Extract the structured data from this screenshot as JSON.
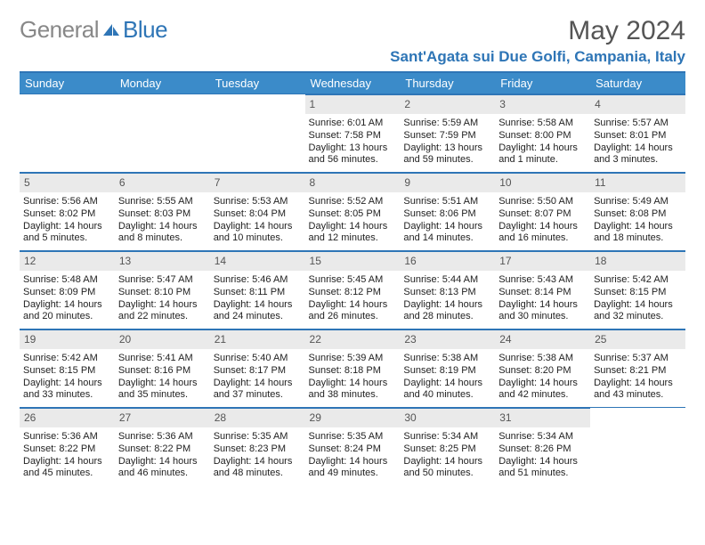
{
  "logo": {
    "gray": "General",
    "blue": "Blue"
  },
  "title": "May 2024",
  "location": "Sant'Agata sui Due Golfi, Campania, Italy",
  "colors": {
    "header_bg": "#3b8bc9",
    "border": "#2e75b6",
    "daynum_bg": "#eaeaea",
    "text": "#222222",
    "title_text": "#555555"
  },
  "weekdays": [
    "Sunday",
    "Monday",
    "Tuesday",
    "Wednesday",
    "Thursday",
    "Friday",
    "Saturday"
  ],
  "weeks": [
    [
      null,
      null,
      null,
      {
        "n": "1",
        "sr": "6:01 AM",
        "ss": "7:58 PM",
        "dl": "13 hours and 56 minutes."
      },
      {
        "n": "2",
        "sr": "5:59 AM",
        "ss": "7:59 PM",
        "dl": "13 hours and 59 minutes."
      },
      {
        "n": "3",
        "sr": "5:58 AM",
        "ss": "8:00 PM",
        "dl": "14 hours and 1 minute."
      },
      {
        "n": "4",
        "sr": "5:57 AM",
        "ss": "8:01 PM",
        "dl": "14 hours and 3 minutes."
      }
    ],
    [
      {
        "n": "5",
        "sr": "5:56 AM",
        "ss": "8:02 PM",
        "dl": "14 hours and 5 minutes."
      },
      {
        "n": "6",
        "sr": "5:55 AM",
        "ss": "8:03 PM",
        "dl": "14 hours and 8 minutes."
      },
      {
        "n": "7",
        "sr": "5:53 AM",
        "ss": "8:04 PM",
        "dl": "14 hours and 10 minutes."
      },
      {
        "n": "8",
        "sr": "5:52 AM",
        "ss": "8:05 PM",
        "dl": "14 hours and 12 minutes."
      },
      {
        "n": "9",
        "sr": "5:51 AM",
        "ss": "8:06 PM",
        "dl": "14 hours and 14 minutes."
      },
      {
        "n": "10",
        "sr": "5:50 AM",
        "ss": "8:07 PM",
        "dl": "14 hours and 16 minutes."
      },
      {
        "n": "11",
        "sr": "5:49 AM",
        "ss": "8:08 PM",
        "dl": "14 hours and 18 minutes."
      }
    ],
    [
      {
        "n": "12",
        "sr": "5:48 AM",
        "ss": "8:09 PM",
        "dl": "14 hours and 20 minutes."
      },
      {
        "n": "13",
        "sr": "5:47 AM",
        "ss": "8:10 PM",
        "dl": "14 hours and 22 minutes."
      },
      {
        "n": "14",
        "sr": "5:46 AM",
        "ss": "8:11 PM",
        "dl": "14 hours and 24 minutes."
      },
      {
        "n": "15",
        "sr": "5:45 AM",
        "ss": "8:12 PM",
        "dl": "14 hours and 26 minutes."
      },
      {
        "n": "16",
        "sr": "5:44 AM",
        "ss": "8:13 PM",
        "dl": "14 hours and 28 minutes."
      },
      {
        "n": "17",
        "sr": "5:43 AM",
        "ss": "8:14 PM",
        "dl": "14 hours and 30 minutes."
      },
      {
        "n": "18",
        "sr": "5:42 AM",
        "ss": "8:15 PM",
        "dl": "14 hours and 32 minutes."
      }
    ],
    [
      {
        "n": "19",
        "sr": "5:42 AM",
        "ss": "8:15 PM",
        "dl": "14 hours and 33 minutes."
      },
      {
        "n": "20",
        "sr": "5:41 AM",
        "ss": "8:16 PM",
        "dl": "14 hours and 35 minutes."
      },
      {
        "n": "21",
        "sr": "5:40 AM",
        "ss": "8:17 PM",
        "dl": "14 hours and 37 minutes."
      },
      {
        "n": "22",
        "sr": "5:39 AM",
        "ss": "8:18 PM",
        "dl": "14 hours and 38 minutes."
      },
      {
        "n": "23",
        "sr": "5:38 AM",
        "ss": "8:19 PM",
        "dl": "14 hours and 40 minutes."
      },
      {
        "n": "24",
        "sr": "5:38 AM",
        "ss": "8:20 PM",
        "dl": "14 hours and 42 minutes."
      },
      {
        "n": "25",
        "sr": "5:37 AM",
        "ss": "8:21 PM",
        "dl": "14 hours and 43 minutes."
      }
    ],
    [
      {
        "n": "26",
        "sr": "5:36 AM",
        "ss": "8:22 PM",
        "dl": "14 hours and 45 minutes."
      },
      {
        "n": "27",
        "sr": "5:36 AM",
        "ss": "8:22 PM",
        "dl": "14 hours and 46 minutes."
      },
      {
        "n": "28",
        "sr": "5:35 AM",
        "ss": "8:23 PM",
        "dl": "14 hours and 48 minutes."
      },
      {
        "n": "29",
        "sr": "5:35 AM",
        "ss": "8:24 PM",
        "dl": "14 hours and 49 minutes."
      },
      {
        "n": "30",
        "sr": "5:34 AM",
        "ss": "8:25 PM",
        "dl": "14 hours and 50 minutes."
      },
      {
        "n": "31",
        "sr": "5:34 AM",
        "ss": "8:26 PM",
        "dl": "14 hours and 51 minutes."
      },
      null
    ]
  ],
  "labels": {
    "sunrise": "Sunrise:",
    "sunset": "Sunset:",
    "daylight": "Daylight:"
  }
}
